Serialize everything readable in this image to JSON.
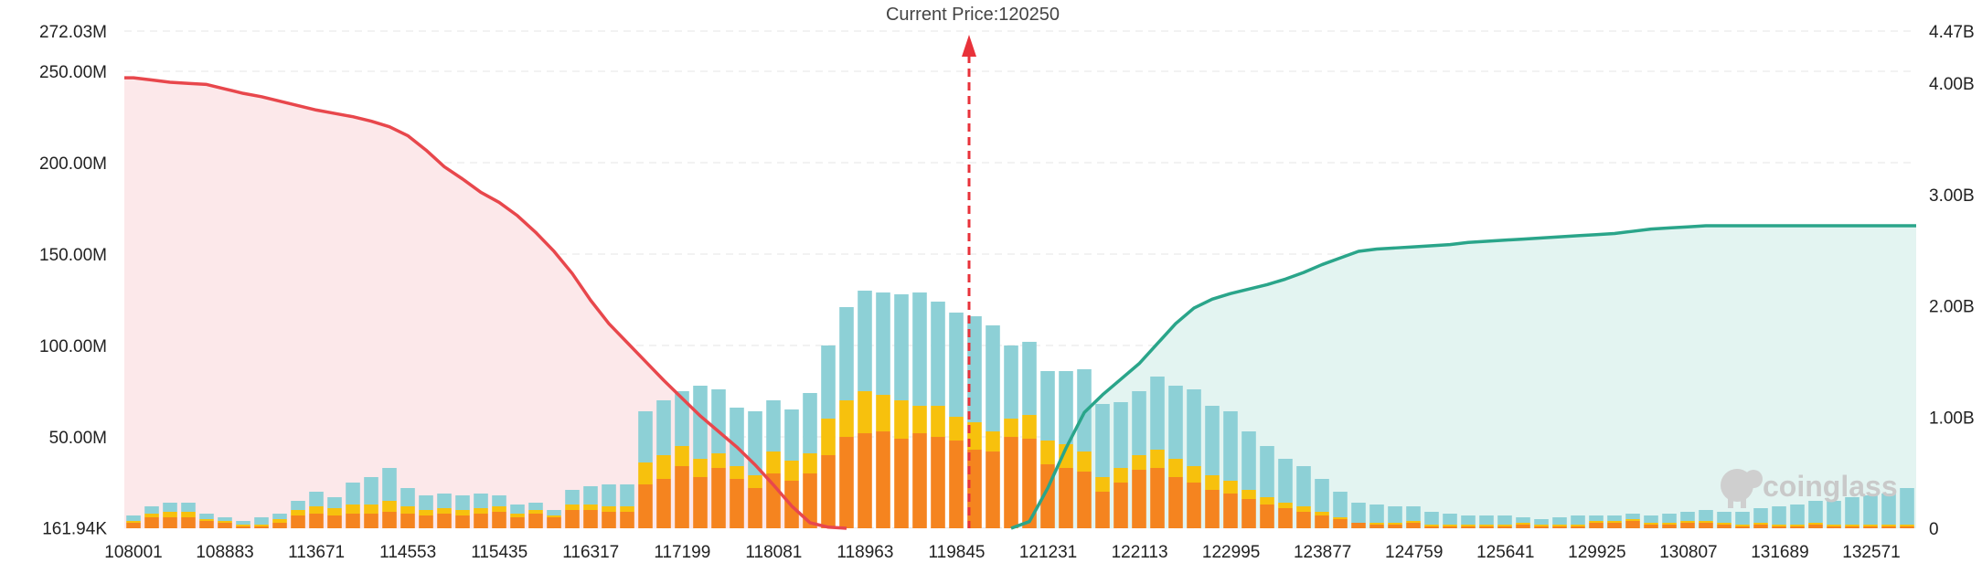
{
  "chart_data": {
    "type": "bar",
    "title": "Current Price:120250",
    "current_price": 120250,
    "watermark": "coinglass",
    "left_axis": {
      "ticks": [
        {
          "value": 0.16194,
          "label": "161.94K"
        },
        {
          "value": 50,
          "label": "50.00M"
        },
        {
          "value": 100,
          "label": "100.00M"
        },
        {
          "value": 150,
          "label": "150.00M"
        },
        {
          "value": 200,
          "label": "200.00M"
        },
        {
          "value": 250,
          "label": "250.00M"
        },
        {
          "value": 272.03,
          "label": "272.03M"
        }
      ],
      "ylim": [
        0,
        272.03
      ]
    },
    "right_axis": {
      "ticks": [
        {
          "value": 0,
          "label": "0"
        },
        {
          "value": 1.0,
          "label": "1.00B"
        },
        {
          "value": 2.0,
          "label": "2.00B"
        },
        {
          "value": 3.0,
          "label": "3.00B"
        },
        {
          "value": 4.0,
          "label": "4.00B"
        },
        {
          "value": 4.47,
          "label": "4.47B"
        }
      ],
      "ylim": [
        0,
        4.47
      ]
    },
    "x_ticks": [
      "108001",
      "108883",
      "113671",
      "114553",
      "115435",
      "116317",
      "117199",
      "118081",
      "118963",
      "119845",
      "121231",
      "122113",
      "122995",
      "123877",
      "124759",
      "125641",
      "129925",
      "130807",
      "131689",
      "132571"
    ],
    "bar_count": 98,
    "current_price_index": 46.2,
    "series": [
      {
        "name": "orange",
        "color": "#f5841f",
        "values": [
          3,
          6,
          6,
          6,
          4,
          3,
          1,
          1,
          3,
          7,
          8,
          7,
          8,
          8,
          9,
          8,
          7,
          8,
          7,
          8,
          9,
          6,
          8,
          6,
          10,
          10,
          9,
          9,
          24,
          27,
          34,
          28,
          33,
          27,
          22,
          30,
          26,
          30,
          40,
          50,
          52,
          53,
          49,
          52,
          50,
          48,
          43,
          42,
          50,
          49,
          35,
          33,
          31,
          20,
          25,
          32,
          33,
          28,
          25,
          21,
          19,
          16,
          13,
          11,
          9,
          7,
          5,
          3,
          2,
          2,
          3,
          1,
          1,
          1,
          1,
          1,
          2,
          1,
          1,
          1,
          3,
          3,
          4,
          2,
          2,
          3,
          3,
          2,
          1,
          2,
          1,
          1,
          2,
          1,
          1,
          1,
          1,
          1
        ]
      },
      {
        "name": "yellow",
        "color": "#f7c10d",
        "values": [
          1,
          2,
          3,
          3,
          1,
          1,
          1,
          1,
          2,
          3,
          4,
          4,
          5,
          5,
          6,
          4,
          3,
          3,
          3,
          3,
          3,
          2,
          2,
          1,
          3,
          3,
          3,
          3,
          12,
          13,
          11,
          10,
          8,
          7,
          7,
          12,
          11,
          11,
          20,
          20,
          23,
          20,
          21,
          15,
          17,
          13,
          15,
          11,
          10,
          13,
          13,
          13,
          11,
          8,
          8,
          8,
          10,
          10,
          9,
          8,
          7,
          5,
          4,
          3,
          3,
          2,
          1,
          0,
          1,
          1,
          1,
          1,
          1,
          1,
          1,
          1,
          1,
          1,
          1,
          1,
          1,
          1,
          1,
          1,
          1,
          1,
          1,
          1,
          1,
          1,
          1,
          1,
          1,
          1,
          1,
          1,
          1,
          1
        ]
      },
      {
        "name": "teal",
        "color": "#8dd0d6",
        "values": [
          3,
          4,
          5,
          5,
          3,
          2,
          2,
          4,
          3,
          5,
          8,
          6,
          12,
          15,
          18,
          10,
          8,
          8,
          8,
          8,
          6,
          5,
          4,
          3,
          8,
          10,
          12,
          12,
          28,
          30,
          30,
          40,
          35,
          32,
          35,
          28,
          28,
          33,
          40,
          51,
          55,
          56,
          58,
          62,
          57,
          57,
          58,
          58,
          40,
          40,
          38,
          40,
          45,
          40,
          36,
          35,
          40,
          40,
          42,
          38,
          38,
          32,
          28,
          24,
          22,
          18,
          14,
          11,
          10,
          9,
          8,
          7,
          6,
          5,
          5,
          5,
          3,
          3,
          4,
          5,
          3,
          3,
          3,
          4,
          5,
          5,
          6,
          6,
          7,
          8,
          10,
          11,
          12,
          13,
          15,
          16,
          17,
          20
        ]
      },
      {
        "name": "cumulative_short",
        "color": "#e8474c",
        "values": [
          4.05,
          4.03,
          4.01,
          4.0,
          3.99,
          3.95,
          3.91,
          3.88,
          3.84,
          3.8,
          3.76,
          3.73,
          3.7,
          3.66,
          3.61,
          3.53,
          3.4,
          3.25,
          3.14,
          3.02,
          2.93,
          2.81,
          2.66,
          2.49,
          2.29,
          2.05,
          1.84,
          1.67,
          1.5,
          1.33,
          1.17,
          1.01,
          0.87,
          0.73,
          0.57,
          0.39,
          0.2,
          0.05,
          0.01,
          0.0
        ]
      },
      {
        "name": "cumulative_long",
        "color": "#2aa58a",
        "values": [
          0.0,
          0.06,
          0.36,
          0.72,
          1.04,
          1.2,
          1.34,
          1.48,
          1.66,
          1.84,
          1.98,
          2.06,
          2.11,
          2.15,
          2.19,
          2.24,
          2.3,
          2.37,
          2.43,
          2.49,
          2.51,
          2.52,
          2.53,
          2.54,
          2.55,
          2.57,
          2.58,
          2.59,
          2.6,
          2.61,
          2.62,
          2.63,
          2.64,
          2.65,
          2.67,
          2.69,
          2.7,
          2.71,
          2.72
        ]
      }
    ]
  }
}
